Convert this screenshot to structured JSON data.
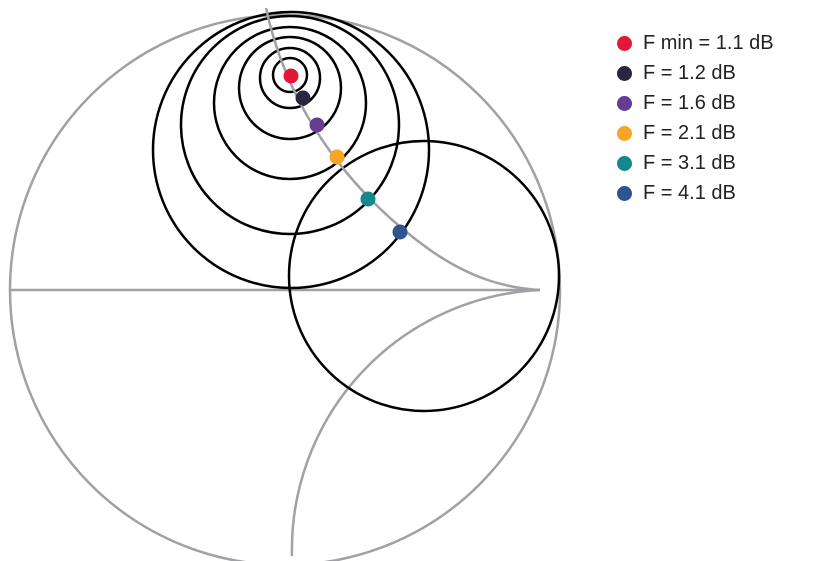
{
  "colors": {
    "chart_grid": "#a0a1a6",
    "circle_stroke": "#000000",
    "background": "#ffffff"
  },
  "legend": {
    "items": [
      {
        "label": "F min = 1.1 dB",
        "color": "#e2173a"
      },
      {
        "label": "F = 1.2 dB",
        "color": "#2a2640"
      },
      {
        "label": "F = 1.6 dB",
        "color": "#643c92"
      },
      {
        "label": "F = 2.1 dB",
        "color": "#f6a623"
      },
      {
        "label": "F = 3.1 dB",
        "color": "#13898b"
      },
      {
        "label": "F = 4.1 dB",
        "color": "#2e5591"
      }
    ]
  }
}
